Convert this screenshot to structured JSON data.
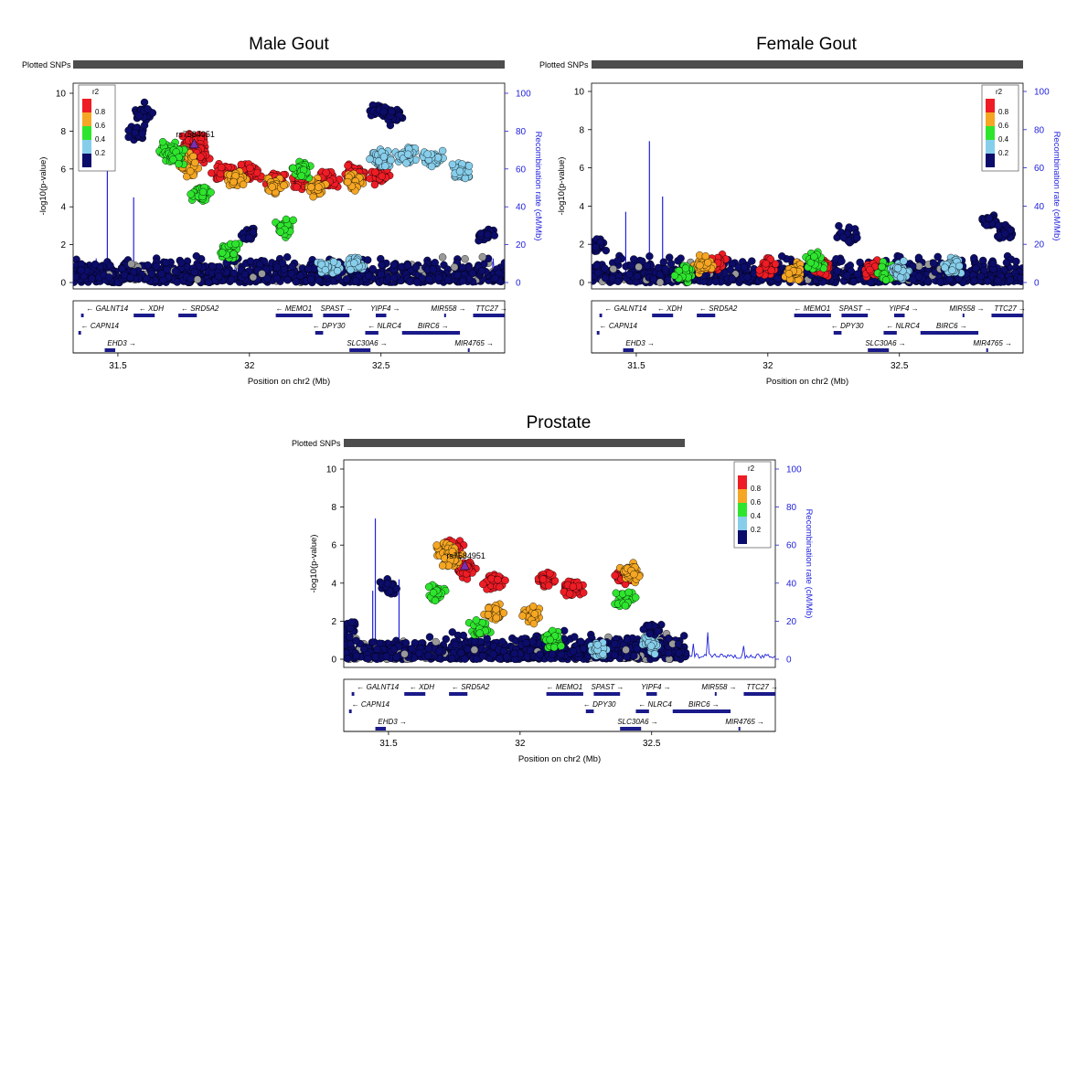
{
  "chart_data": [
    {
      "type": "scatter",
      "title": "Male Gout",
      "plotted_snps_label": "Plotted SNPs",
      "xlabel": "Position on chr2 (Mb)",
      "ylabel": "-log10(p-value)",
      "ylabel_right": "Recombination rate (cM/Mb)",
      "xlim": [
        31.33,
        32.97
      ],
      "xticks": [
        31.5,
        32,
        32.5
      ],
      "xtick_labels": [
        "31.5",
        "32",
        "32.5"
      ],
      "ylim": [
        0,
        10
      ],
      "yticks": [
        0,
        2,
        4,
        6,
        8,
        10
      ],
      "ytick_labels": [
        "0",
        "2",
        "4",
        "6",
        "8",
        "10"
      ],
      "y2lim": [
        0,
        100
      ],
      "y2ticks": [
        0,
        20,
        40,
        60,
        80,
        100
      ],
      "y2tick_labels": [
        "0",
        "20",
        "40",
        "60",
        "80",
        "100"
      ],
      "legend_position": "top-left",
      "lead_snp": {
        "label": "rs7584951",
        "x": 31.79,
        "y": 7.3
      },
      "series": [
        {
          "r2_bin": "0.8-1.0",
          "color": "#ee1c25",
          "cluster_points": [
            [
              31.76,
              6.9
            ],
            [
              31.78,
              7.3
            ],
            [
              31.8,
              7.4
            ],
            [
              31.81,
              6.8
            ],
            [
              31.9,
              5.8
            ],
            [
              32.0,
              5.8
            ],
            [
              32.1,
              5.6
            ],
            [
              32.2,
              5.4
            ],
            [
              32.3,
              5.5
            ],
            [
              32.4,
              5.7
            ],
            [
              32.5,
              5.6
            ]
          ]
        },
        {
          "r2_bin": "0.6-0.8",
          "color": "#f5a623",
          "cluster_points": [
            [
              31.74,
              6.6
            ],
            [
              31.77,
              6.1
            ],
            [
              31.95,
              5.4
            ],
            [
              32.1,
              5.2
            ],
            [
              32.25,
              5.0
            ],
            [
              32.4,
              5.3
            ]
          ]
        },
        {
          "r2_bin": "0.4-0.6",
          "color": "#2ee52e",
          "cluster_points": [
            [
              31.69,
              7.0
            ],
            [
              31.72,
              6.6
            ],
            [
              31.82,
              4.7
            ],
            [
              32.13,
              2.9
            ],
            [
              32.2,
              5.9
            ],
            [
              31.93,
              1.6
            ]
          ]
        },
        {
          "r2_bin": "0.2-0.4",
          "color": "#87ceeb",
          "cluster_points": [
            [
              32.3,
              0.8
            ],
            [
              32.4,
              1.0
            ],
            [
              32.5,
              6.5
            ],
            [
              32.6,
              6.8
            ],
            [
              32.7,
              6.6
            ],
            [
              32.8,
              5.9
            ]
          ]
        },
        {
          "r2_bin": "0.0-0.2",
          "color": "#0c0c6a",
          "cluster_points": [
            [
              31.35,
              0.6
            ],
            [
              31.6,
              9.0
            ],
            [
              31.57,
              7.9
            ],
            [
              32.5,
              9.2
            ],
            [
              32.55,
              8.8
            ],
            [
              32.9,
              2.6
            ],
            [
              32.0,
              2.5
            ]
          ]
        }
      ],
      "recombination_peaks": [
        [
          31.46,
          62
        ],
        [
          31.56,
          45
        ]
      ],
      "genes": [
        "GALNT14",
        "XDH",
        "SRD5A2",
        "MEMO1",
        "SPAST",
        "YIPF4",
        "MIR558",
        "TTC27",
        "CAPN14",
        "DPY30",
        "NLRC4",
        "BIRC6",
        "SLC30A6",
        "MIR4765",
        "EHD3"
      ]
    },
    {
      "type": "scatter",
      "title": "Female Gout",
      "plotted_snps_label": "Plotted SNPs",
      "xlabel": "Position on chr2 (Mb)",
      "ylabel": "-log10(p-value)",
      "ylabel_right": "Recombination rate (cM/Mb)",
      "xlim": [
        31.33,
        32.97
      ],
      "xticks": [
        31.5,
        32,
        32.5
      ],
      "xtick_labels": [
        "31.5",
        "32",
        "32.5"
      ],
      "ylim": [
        0,
        10
      ],
      "yticks": [
        0,
        2,
        4,
        6,
        8,
        10
      ],
      "ytick_labels": [
        "0",
        "2",
        "4",
        "6",
        "8",
        "10"
      ],
      "y2lim": [
        0,
        100
      ],
      "y2ticks": [
        0,
        20,
        40,
        60,
        80,
        100
      ],
      "y2tick_labels": [
        "0",
        "20",
        "40",
        "60",
        "80",
        "100"
      ],
      "legend_position": "top-right",
      "lead_snp": null,
      "series": [
        {
          "r2_bin": "0.8-1.0",
          "color": "#ee1c25",
          "cluster_points": [
            [
              31.8,
              1.0
            ],
            [
              32.0,
              0.9
            ],
            [
              32.2,
              0.8
            ],
            [
              32.4,
              0.7
            ]
          ]
        },
        {
          "r2_bin": "0.6-0.8",
          "color": "#f5a623",
          "cluster_points": [
            [
              31.75,
              1.0
            ],
            [
              32.1,
              0.6
            ]
          ]
        },
        {
          "r2_bin": "0.4-0.6",
          "color": "#2ee52e",
          "cluster_points": [
            [
              31.68,
              0.4
            ],
            [
              32.18,
              1.1
            ],
            [
              32.45,
              0.5
            ]
          ]
        },
        {
          "r2_bin": "0.2-0.4",
          "color": "#87ceeb",
          "cluster_points": [
            [
              32.5,
              0.6
            ],
            [
              32.7,
              0.8
            ]
          ]
        },
        {
          "r2_bin": "0.0-0.2",
          "color": "#0c0c6a",
          "cluster_points": [
            [
              31.35,
              2.0
            ],
            [
              32.85,
              3.2
            ],
            [
              32.9,
              2.6
            ],
            [
              32.3,
              2.5
            ]
          ]
        }
      ],
      "recombination_peaks": [
        [
          31.46,
          37
        ],
        [
          31.55,
          74
        ],
        [
          31.6,
          45
        ]
      ],
      "genes": [
        "GALNT14",
        "XDH",
        "SRD5A2",
        "MEMO1",
        "SPAST",
        "YIPF4",
        "MIR558",
        "TTC27",
        "CAPN14",
        "DPY30",
        "NLRC4",
        "BIRC6",
        "SLC30A6",
        "MIR4765",
        "EHD3"
      ]
    },
    {
      "type": "scatter",
      "title": "Prostate",
      "plotted_snps_label": "Plotted SNPs",
      "xlabel": "Position on chr2 (Mb)",
      "ylabel": "-log10(p-value)",
      "ylabel_right": "Recombination rate (cM/Mb)",
      "xlim": [
        31.33,
        32.97
      ],
      "xticks": [
        31.5,
        32,
        32.5
      ],
      "xtick_labels": [
        "31.5",
        "32",
        "32.5"
      ],
      "ylim": [
        0,
        10
      ],
      "yticks": [
        0,
        2,
        4,
        6,
        8,
        10
      ],
      "ytick_labels": [
        "0",
        "2",
        "4",
        "6",
        "8",
        "10"
      ],
      "y2lim": [
        0,
        100
      ],
      "y2ticks": [
        0,
        20,
        40,
        60,
        80,
        100
      ],
      "y2tick_labels": [
        "0",
        "20",
        "40",
        "60",
        "80",
        "100"
      ],
      "legend_position": "top-right",
      "lead_snp": {
        "label": "rs7584951",
        "x": 31.79,
        "y": 4.9
      },
      "series": [
        {
          "r2_bin": "0.8-1.0",
          "color": "#ee1c25",
          "cluster_points": [
            [
              31.75,
              5.9
            ],
            [
              31.8,
              4.7
            ],
            [
              31.9,
              4.0
            ],
            [
              32.1,
              4.2
            ],
            [
              32.2,
              3.7
            ],
            [
              32.4,
              4.3
            ]
          ]
        },
        {
          "r2_bin": "0.6-0.8",
          "color": "#f5a623",
          "cluster_points": [
            [
              31.72,
              5.7
            ],
            [
              31.74,
              5.2
            ],
            [
              31.9,
              2.4
            ],
            [
              32.05,
              2.3
            ],
            [
              32.42,
              4.6
            ]
          ]
        },
        {
          "r2_bin": "0.4-0.6",
          "color": "#2ee52e",
          "cluster_points": [
            [
              31.68,
              3.4
            ],
            [
              31.85,
              1.6
            ],
            [
              32.4,
              3.1
            ],
            [
              32.12,
              1.0
            ]
          ]
        },
        {
          "r2_bin": "0.2-0.4",
          "color": "#87ceeb",
          "cluster_points": [
            [
              32.3,
              0.5
            ],
            [
              32.5,
              0.8
            ]
          ]
        },
        {
          "r2_bin": "0.0-0.2",
          "color": "#0c0c6a",
          "cluster_points": [
            [
              31.35,
              1.7
            ],
            [
              31.5,
              3.8
            ],
            [
              32.5,
              1.6
            ]
          ]
        }
      ],
      "snp_data_end": 32.63,
      "recombination_peaks": [
        [
          31.44,
          36
        ],
        [
          31.45,
          74
        ],
        [
          31.54,
          42
        ]
      ],
      "genes": [
        "GALNT14",
        "XDH",
        "SRD5A2",
        "MEMO1",
        "SPAST",
        "YIPF4",
        "MIR558",
        "TTC27",
        "CAPN14",
        "DPY30",
        "NLRC4",
        "BIRC6",
        "SLC30A6",
        "MIR4765",
        "EHD3"
      ]
    }
  ],
  "legend": {
    "title": "r2",
    "bins": [
      {
        "label": "0.8",
        "color": "#ee1c25"
      },
      {
        "label": "0.6",
        "color": "#f5a623"
      },
      {
        "label": "0.4",
        "color": "#2ee52e"
      },
      {
        "label": "0.2",
        "color": "#87ceeb"
      },
      {
        "label": "",
        "color": "#0c0c6a"
      }
    ],
    "bin_colors_top_to_bottom": [
      "#ee1c25",
      "#f5a623",
      "#2ee52e",
      "#87ceeb",
      "#0c0c6a"
    ]
  },
  "colors": {
    "recombination_line": "#2222dd",
    "point_outline": "#000000",
    "plotted_snps_bar": "#4d4d4d",
    "gray_points": "#999999",
    "gene_blue": "#1a1a8a"
  }
}
